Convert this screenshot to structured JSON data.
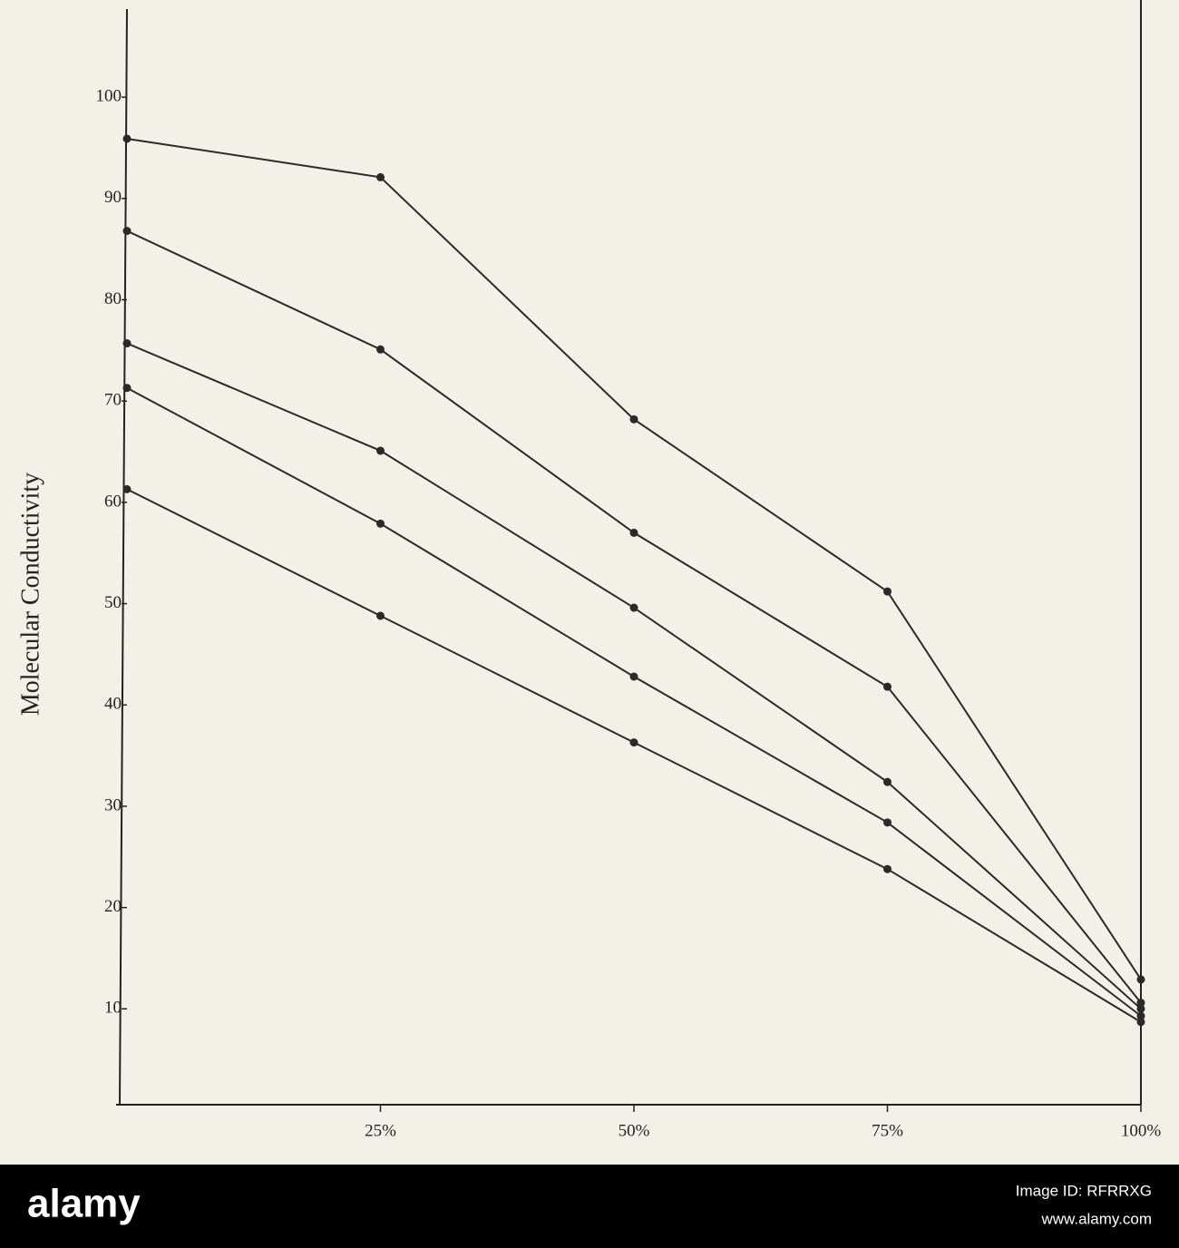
{
  "chart_data": {
    "type": "line",
    "y_label": "Molecular Conductivity",
    "x": [
      0,
      25,
      50,
      75,
      100
    ],
    "series": [
      {
        "color": "#2a2a2a",
        "values": [
          95.9,
          92.1,
          68.2,
          51.2,
          12.9
        ]
      },
      {
        "color": "#2a2a2a",
        "values": [
          86.8,
          75.1,
          57.0,
          41.8,
          10.6
        ]
      },
      {
        "color": "#2a2a2a",
        "values": [
          75.7,
          65.1,
          49.6,
          32.4,
          10.0
        ]
      },
      {
        "color": "#2a2a2a",
        "values": [
          71.3,
          57.9,
          42.8,
          28.4,
          9.3
        ]
      },
      {
        "color": "#2a2a2a",
        "values": [
          61.3,
          48.8,
          36.3,
          23.8,
          8.7
        ]
      }
    ],
    "xlim": [
      0,
      100
    ],
    "xticks": [
      {
        "value": 25,
        "label": "25%"
      },
      {
        "value": 50,
        "label": "50%"
      },
      {
        "value": 75,
        "label": "75%"
      },
      {
        "value": 100,
        "label": "100%"
      }
    ],
    "ylim": [
      0,
      108.7
    ],
    "yticks": [
      10,
      20,
      30,
      40,
      50,
      60,
      70,
      80,
      90,
      100
    ],
    "grid": false
  },
  "footer": {
    "brand": "alamy",
    "image_id": "Image ID: RFRRXG",
    "url": "www.alamy.com"
  }
}
